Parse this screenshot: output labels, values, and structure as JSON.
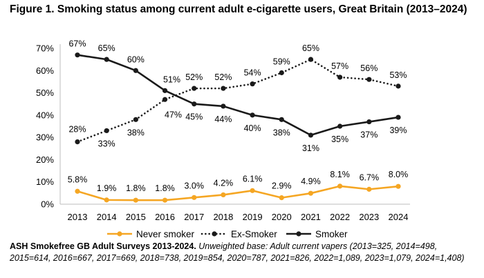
{
  "chart_data": {
    "type": "line",
    "title": "Figure 1. Smoking status among current adult e-cigarette users, Great Britain (2013–2024)",
    "x": [
      "2013",
      "2014",
      "2015",
      "2016",
      "2017",
      "2018",
      "2019",
      "2020",
      "2021",
      "2022",
      "2023",
      "2024"
    ],
    "yticks": [
      "0%",
      "10%",
      "20%",
      "30%",
      "40%",
      "50%",
      "60%",
      "70%"
    ],
    "ylim": [
      0,
      70
    ],
    "grid": false,
    "legend_position": "bottom",
    "series": [
      {
        "name": "Never smoker",
        "style": "solid",
        "color": "#f5a623",
        "values": [
          5.8,
          1.9,
          1.8,
          1.8,
          3.0,
          4.2,
          6.1,
          2.9,
          4.9,
          8.1,
          6.7,
          8.0
        ],
        "labels": [
          "5.8%",
          "1.9%",
          "1.8%",
          "1.8%",
          "3.0%",
          "4.2%",
          "6.1%",
          "2.9%",
          "4.9%",
          "8.1%",
          "6.7%",
          "8.0%"
        ]
      },
      {
        "name": "Ex-Smoker",
        "style": "dotted",
        "color": "#1a1a1a",
        "values": [
          28,
          33,
          38,
          47,
          52,
          52,
          54,
          59,
          65,
          57,
          56,
          53
        ],
        "labels": [
          "28%",
          "33%",
          "38%",
          "47%",
          "52%",
          "52%",
          "54%",
          "59%",
          "65%",
          "57%",
          "56%",
          "53%"
        ]
      },
      {
        "name": "Smoker",
        "style": "solid",
        "color": "#1a1a1a",
        "values": [
          67,
          65,
          60,
          51,
          45,
          44,
          40,
          38,
          31,
          35,
          37,
          39
        ],
        "labels": [
          "67%",
          "65%",
          "60%",
          "51%",
          "45%",
          "44%",
          "40%",
          "38%",
          "31%",
          "35%",
          "37%",
          "39%"
        ]
      }
    ]
  },
  "source": {
    "lead": "ASH Smokefree GB Adult Surveys 2013-2024.",
    "note": " Unweighted base: Adult current vapers (2013=325, 2014=498, 2015=614, 2016=667, 2017=669, 2018=738, 2019=854, 2020=787, 2021=826, 2022=1,089, 2023=1,079, 2024=1,408)"
  }
}
